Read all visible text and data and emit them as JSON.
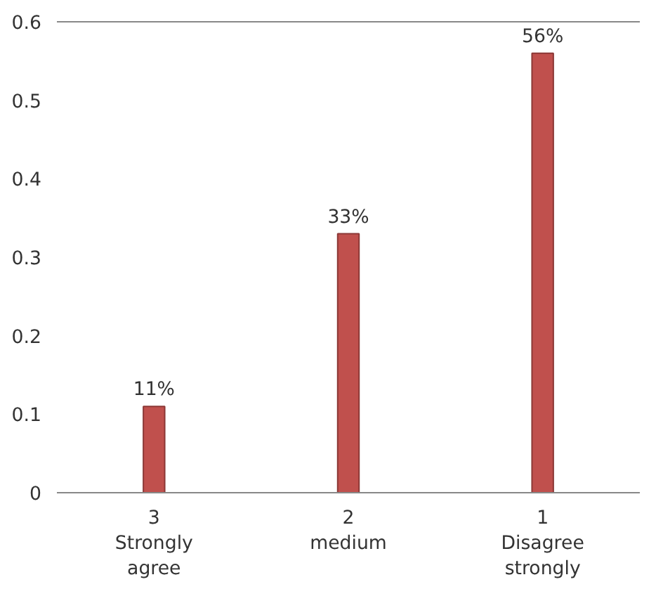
{
  "chart_data": {
    "type": "bar",
    "categories": [
      "3\nStrongly\nagree",
      "2\nmedium",
      "1\nDisagree\nstrongly"
    ],
    "values": [
      0.11,
      0.33,
      0.56
    ],
    "value_labels": [
      "11%",
      "33%",
      "56%"
    ],
    "color": "#c0504d",
    "ylim": [
      0,
      0.6
    ],
    "yticks": [
      0,
      0.1,
      0.2,
      0.3,
      0.4,
      0.5,
      0.6
    ],
    "grid": false
  }
}
